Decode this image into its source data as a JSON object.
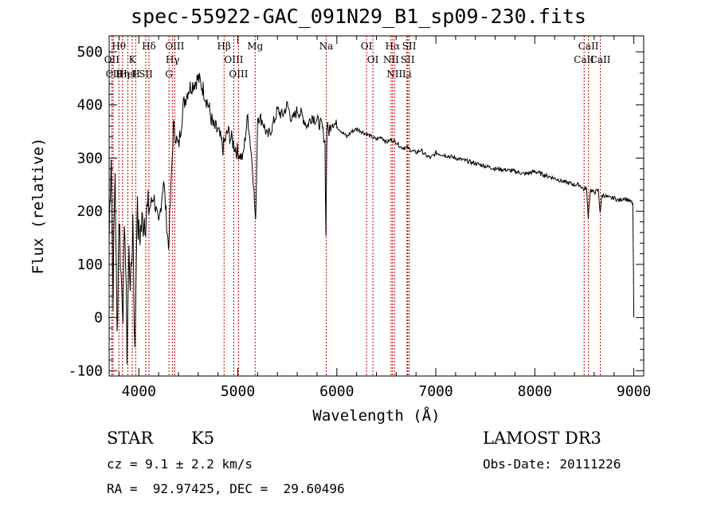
{
  "chart_data": {
    "type": "line",
    "title": "spec-55922-GAC_091N29_B1_sp09-230.fits",
    "xlabel": "Wavelength (Å)",
    "ylabel": "Flux (relative)",
    "xlim": [
      3700,
      9100
    ],
    "ylim": [
      -110,
      530
    ],
    "xticks": [
      4000,
      5000,
      6000,
      7000,
      8000,
      9000
    ],
    "yticks": [
      -100,
      0,
      100,
      200,
      300,
      400,
      500
    ],
    "grid": false,
    "series": [
      {
        "x": [
          3700,
          3720,
          3740,
          3760,
          3780,
          3800,
          3820,
          3840,
          3860,
          3880,
          3900,
          3920,
          3940,
          3960,
          3980,
          4000,
          4050,
          4100,
          4150,
          4200,
          4250,
          4300,
          4350,
          4400,
          4450,
          4500,
          4550,
          4600,
          4650,
          4700,
          4750,
          4800,
          4850,
          4900,
          4950,
          5000,
          5050,
          5100,
          5150,
          5180,
          5200,
          5250,
          5300,
          5350,
          5400,
          5450,
          5500,
          5550,
          5600,
          5650,
          5700,
          5750,
          5800,
          5850,
          5880,
          5890,
          5900,
          5920,
          5950,
          6000,
          6050,
          6100,
          6150,
          6200,
          6250,
          6300,
          6350,
          6400,
          6450,
          6500,
          6550,
          6600,
          6650,
          6700,
          6750,
          6800,
          6850,
          6900,
          6950,
          7000,
          7100,
          7200,
          7300,
          7400,
          7500,
          7600,
          7700,
          7800,
          7900,
          8000,
          8100,
          8200,
          8300,
          8400,
          8450,
          8500,
          8520,
          8540,
          8560,
          8600,
          8640,
          8660,
          8680,
          8700,
          8750,
          8800,
          8850,
          8900,
          8950,
          8990,
          9000
        ],
        "y": [
          150,
          320,
          50,
          280,
          -40,
          200,
          80,
          30,
          180,
          -60,
          120,
          60,
          190,
          -80,
          210,
          150,
          190,
          200,
          230,
          170,
          260,
          130,
          360,
          320,
          400,
          430,
          440,
          450,
          430,
          400,
          360,
          350,
          320,
          350,
          330,
          310,
          300,
          380,
          280,
          175,
          380,
          370,
          340,
          360,
          390,
          380,
          400,
          370,
          390,
          380,
          360,
          380,
          370,
          360,
          330,
          150,
          360,
          350,
          370,
          360,
          350,
          340,
          350,
          355,
          350,
          345,
          340,
          335,
          340,
          330,
          335,
          330,
          320,
          320,
          315,
          310,
          315,
          305,
          300,
          310,
          305,
          300,
          295,
          290,
          285,
          280,
          278,
          275,
          270,
          275,
          268,
          262,
          255,
          250,
          250,
          240,
          245,
          190,
          240,
          235,
          240,
          200,
          230,
          230,
          225,
          225,
          220,
          225,
          220,
          215,
          0
        ]
      }
    ],
    "lines": [
      {
        "label": "Hθ",
        "x": 3798
      },
      {
        "label": "OII",
        "x": 3727
      },
      {
        "label": "CII",
        "x": 3740
      },
      {
        "label": "K",
        "x": 3934
      },
      {
        "label": "HeI",
        "x": 3889
      },
      {
        "label": "Hη",
        "x": 3835
      },
      {
        "label": "Hδ",
        "x": 4102
      },
      {
        "label": "SII",
        "x": 4070
      },
      {
        "label": "H",
        "x": 3969
      },
      {
        "label": "OIII",
        "x": 4363
      },
      {
        "label": "Hγ",
        "x": 4341
      },
      {
        "label": "G",
        "x": 4305
      },
      {
        "label": "Hβ",
        "x": 4861
      },
      {
        "label": "OIII",
        "x": 4959
      },
      {
        "label": "OIII",
        "x": 5007
      },
      {
        "label": "Mg",
        "x": 5175
      },
      {
        "label": "Na",
        "x": 5893
      },
      {
        "label": "OI",
        "x": 6300
      },
      {
        "label": "OI",
        "x": 6364
      },
      {
        "label": "Hα",
        "x": 6563
      },
      {
        "label": "NII",
        "x": 6548
      },
      {
        "label": "NII",
        "x": 6583
      },
      {
        "label": "SII",
        "x": 6716
      },
      {
        "label": "Li",
        "x": 6708
      },
      {
        "label": "SII",
        "x": 6731
      },
      {
        "label": "CaII",
        "x": 8542
      },
      {
        "label": "CaII",
        "x": 8498
      },
      {
        "label": "CaII",
        "x": 8662
      }
    ]
  },
  "info": {
    "class": "STAR",
    "subclass": "K5",
    "cz": "cz = 9.1 ± 2.2 km/s",
    "radec": "RA =  92.97425, DEC =  29.60496",
    "survey": "LAMOST DR3",
    "obsdate": "Obs-Date: 20111226"
  },
  "colors": {
    "axes": "#000000",
    "spectrum": "#000000",
    "lines": "#c00000"
  }
}
